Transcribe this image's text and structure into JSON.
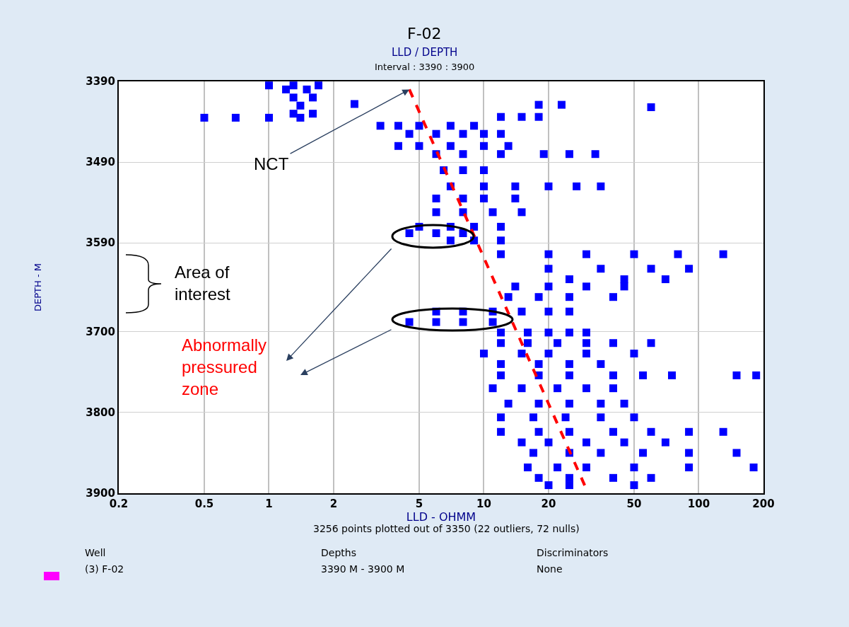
{
  "chart_data": {
    "type": "scatter",
    "title": "F-02",
    "subtitle": "LLD / DEPTH",
    "xlabel": "LLD - OHMM",
    "ylabel": "DEPTH - M",
    "log": "x",
    "xlim": [
      0.2,
      200
    ],
    "xticks": [
      0.2,
      0.5,
      1,
      2,
      5,
      10,
      20,
      50,
      100,
      200
    ],
    "ylim": [
      3900,
      3390
    ],
    "yticks": [
      3390,
      3490,
      3590,
      3700,
      3800,
      3900
    ],
    "grid": true,
    "series": [
      {
        "color": "#0000ff",
        "marker": "square",
        "x": [
          1.0,
          1.3,
          1.7,
          1.2,
          1.5,
          1.3,
          1.6,
          1.4,
          1.3,
          1.6,
          0.5,
          0.7,
          1.0,
          1.4,
          2.5,
          60,
          18,
          23,
          12,
          15,
          18,
          3.3,
          4,
          5,
          7,
          9,
          4.5,
          6,
          8,
          10,
          12,
          4,
          5,
          7,
          10,
          13,
          6,
          8,
          12,
          19,
          25,
          33,
          6.5,
          8,
          10,
          7,
          10,
          14,
          20,
          27,
          35,
          6,
          8,
          10,
          14,
          6,
          8,
          11,
          15,
          5,
          7,
          9,
          12,
          4.5,
          6,
          8,
          7,
          9,
          12,
          12,
          20,
          30,
          50,
          80,
          130,
          20,
          35,
          60,
          90,
          25,
          45,
          70,
          14,
          20,
          30,
          45,
          13,
          18,
          25,
          40,
          6,
          8,
          11,
          15,
          20,
          25,
          4.5,
          6,
          8,
          11,
          12,
          16,
          20,
          25,
          30,
          12,
          16,
          22,
          30,
          40,
          60,
          10,
          15,
          20,
          30,
          50,
          12,
          18,
          25,
          35,
          12,
          18,
          25,
          40,
          55,
          75,
          150,
          185,
          11,
          15,
          22,
          30,
          40,
          13,
          18,
          25,
          35,
          45,
          12,
          17,
          24,
          35,
          50,
          12,
          18,
          25,
          40,
          60,
          90,
          130,
          15,
          20,
          30,
          45,
          70,
          17,
          25,
          35,
          55,
          90,
          150,
          16,
          22,
          30,
          50,
          90,
          180,
          18,
          25,
          40,
          60,
          20,
          25,
          50
        ],
        "values": [
          3395,
          3395,
          3395,
          3400,
          3400,
          3410,
          3410,
          3420,
          3430,
          3430,
          3435,
          3435,
          3435,
          3435,
          3418,
          3422,
          3419,
          3419,
          3434,
          3434,
          3434,
          3445,
          3445,
          3445,
          3445,
          3445,
          3455,
          3455,
          3455,
          3455,
          3455,
          3470,
          3470,
          3470,
          3470,
          3470,
          3480,
          3480,
          3480,
          3480,
          3480,
          3480,
          3500,
          3500,
          3500,
          3520,
          3520,
          3520,
          3520,
          3520,
          3520,
          3535,
          3535,
          3535,
          3535,
          3552,
          3552,
          3552,
          3552,
          3570,
          3570,
          3570,
          3570,
          3578,
          3578,
          3578,
          3587,
          3587,
          3587,
          3604,
          3604,
          3604,
          3604,
          3604,
          3604,
          3622,
          3622,
          3622,
          3622,
          3635,
          3635,
          3635,
          3644,
          3644,
          3644,
          3644,
          3657,
          3657,
          3657,
          3657,
          3675,
          3675,
          3675,
          3675,
          3675,
          3675,
          3688,
          3688,
          3688,
          3688,
          3701,
          3701,
          3701,
          3701,
          3701,
          3714,
          3714,
          3714,
          3714,
          3714,
          3714,
          3727,
          3727,
          3727,
          3727,
          3727,
          3740,
          3740,
          3740,
          3740,
          3754,
          3754,
          3754,
          3754,
          3754,
          3754,
          3754,
          3754,
          3770,
          3770,
          3770,
          3770,
          3770,
          3789,
          3789,
          3789,
          3789,
          3789,
          3806,
          3806,
          3806,
          3806,
          3806,
          3824,
          3824,
          3824,
          3824,
          3824,
          3824,
          3824,
          3837,
          3837,
          3837,
          3837,
          3837,
          3850,
          3850,
          3850,
          3850,
          3850,
          3850,
          3868,
          3868,
          3868,
          3868,
          3868,
          3868,
          3881,
          3881,
          3881,
          3881,
          3890,
          3890,
          3890
        ]
      },
      {
        "type": "line",
        "color": "#ff0000",
        "line_style": "dashed",
        "marker": "none",
        "x": [
          4.5,
          30
        ],
        "values": [
          3400,
          3895
        ]
      }
    ],
    "annotations": [
      {
        "text": "NCT",
        "x": 4.5,
        "y": 3400
      },
      "Area of interest",
      "Abnormally pressured zone",
      "Interval : 3390 : 3900",
      "3256 points plotted out of 3350 (22 outliers, 72 nulls)",
      "Well",
      "(3) F-02",
      "Depths",
      "3390 M - 3900 M",
      "Discriminators",
      "None"
    ]
  }
}
